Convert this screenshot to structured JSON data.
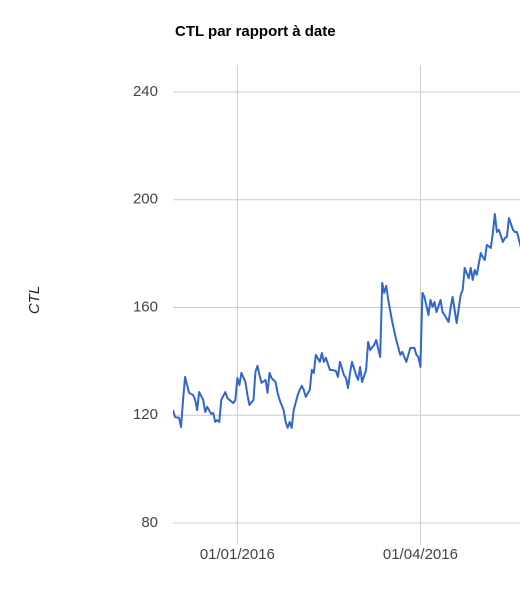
{
  "chart_data": {
    "type": "line",
    "title": "CTL par rapport à date",
    "y_label": "CTL",
    "x": [
      "2015-11-30",
      "2015-12-01",
      "2015-12-03",
      "2015-12-04",
      "2015-12-05",
      "2015-12-06",
      "2015-12-07",
      "2015-12-08",
      "2015-12-10",
      "2015-12-11",
      "2015-12-12",
      "2015-12-13",
      "2015-12-15",
      "2015-12-16",
      "2015-12-17",
      "2015-12-19",
      "2015-12-20",
      "2015-12-21",
      "2015-12-22",
      "2015-12-23",
      "2015-12-24",
      "2015-12-26",
      "2015-12-27",
      "2015-12-28",
      "2015-12-30",
      "2015-12-31",
      "2016-01-01",
      "2016-01-02",
      "2016-01-03",
      "2016-01-05",
      "2016-01-06",
      "2016-01-07",
      "2016-01-09",
      "2016-01-10",
      "2016-01-11",
      "2016-01-12",
      "2016-01-13",
      "2016-01-15",
      "2016-01-16",
      "2016-01-17",
      "2016-01-18",
      "2016-01-20",
      "2016-01-21",
      "2016-01-22",
      "2016-01-24",
      "2016-01-25",
      "2016-01-26",
      "2016-01-27",
      "2016-01-28",
      "2016-01-29",
      "2016-01-31",
      "2016-02-01",
      "2016-02-02",
      "2016-02-03",
      "2016-02-04",
      "2016-02-06",
      "2016-02-07",
      "2016-02-08",
      "2016-02-09",
      "2016-02-11",
      "2016-02-12",
      "2016-02-13",
      "2016-02-14",
      "2016-02-16",
      "2016-02-17",
      "2016-02-19",
      "2016-02-20",
      "2016-02-21",
      "2016-02-23",
      "2016-02-24",
      "2016-02-25",
      "2016-02-26",
      "2016-02-27",
      "2016-02-29",
      "2016-03-01",
      "2016-03-02",
      "2016-03-03",
      "2016-03-05",
      "2016-03-06",
      "2016-03-07",
      "2016-03-09",
      "2016-03-10",
      "2016-03-12",
      "2016-03-13",
      "2016-03-14",
      "2016-03-15",
      "2016-03-16",
      "2016-03-18",
      "2016-03-20",
      "2016-03-22",
      "2016-03-23",
      "2016-03-25",
      "2016-03-26",
      "2016-03-27",
      "2016-03-29",
      "2016-03-30",
      "2016-03-31",
      "2016-04-01",
      "2016-04-02",
      "2016-04-03",
      "2016-04-05",
      "2016-04-06",
      "2016-04-07",
      "2016-04-08",
      "2016-04-09",
      "2016-04-11",
      "2016-04-12",
      "2016-04-13",
      "2016-04-15",
      "2016-04-16",
      "2016-04-17",
      "2016-04-18",
      "2016-04-19",
      "2016-04-21",
      "2016-04-22",
      "2016-04-23",
      "2016-04-25",
      "2016-04-26",
      "2016-04-27",
      "2016-04-28",
      "2016-04-29",
      "2016-05-01",
      "2016-05-02",
      "2016-05-03",
      "2016-05-04",
      "2016-05-06",
      "2016-05-07",
      "2016-05-08",
      "2016-05-09",
      "2016-05-10",
      "2016-05-12",
      "2016-05-13",
      "2016-05-14",
      "2016-05-15",
      "2016-05-17",
      "2016-05-18",
      "2016-05-19",
      "2016-05-21"
    ],
    "series": [
      {
        "color": "#3366cc",
        "values": [
          121.9,
          119.3,
          119.0,
          115.6,
          125.7,
          134.2,
          131.2,
          128.3,
          127.5,
          125.7,
          121.9,
          128.6,
          125.7,
          121.2,
          123.1,
          120.5,
          120.8,
          117.5,
          118.2,
          117.5,
          125.7,
          128.6,
          126.4,
          125.7,
          124.5,
          125.7,
          133.8,
          131.2,
          135.7,
          132.3,
          127.5,
          123.8,
          125.7,
          136.1,
          138.3,
          134.9,
          132.0,
          133.1,
          128.3,
          135.7,
          133.8,
          132.3,
          128.3,
          125.7,
          121.9,
          117.5,
          115.3,
          117.5,
          115.3,
          121.9,
          127.5,
          129.4,
          130.9,
          129.4,
          126.8,
          129.4,
          136.8,
          135.7,
          142.4,
          139.8,
          143.1,
          139.8,
          141.3,
          136.8,
          136.8,
          136.4,
          134.2,
          139.8,
          134.9,
          133.8,
          130.1,
          135.7,
          139.8,
          134.9,
          133.1,
          137.9,
          132.3,
          136.8,
          147.2,
          144.2,
          146.1,
          147.9,
          141.6,
          169.1,
          165.4,
          168.0,
          162.8,
          154.6,
          147.9,
          142.4,
          143.5,
          139.8,
          142.4,
          145.0,
          145.0,
          142.4,
          141.6,
          137.9,
          165.4,
          163.9,
          157.2,
          162.8,
          160.2,
          162.0,
          158.3,
          162.8,
          158.3,
          157.2,
          154.6,
          159.8,
          163.9,
          159.1,
          154.2,
          164.6,
          166.5,
          174.7,
          170.9,
          174.7,
          170.2,
          173.9,
          172.1,
          180.2,
          178.7,
          177.6,
          183.2,
          182.1,
          187.6,
          194.7,
          188.0,
          188.8,
          184.3,
          185.8,
          186.2,
          193.2,
          188.8,
          188.0,
          188.0,
          182.1
        ]
      }
    ],
    "xlim": [
      "2015-11-30",
      "2016-05-21"
    ],
    "xticks": [
      {
        "value": "2016-01-01",
        "label": "01/01/2016"
      },
      {
        "value": "2016-04-01",
        "label": "01/04/2016"
      }
    ],
    "ylim": [
      72,
      250
    ],
    "yticks": [
      80,
      120,
      160,
      200,
      240
    ],
    "grid": true
  }
}
